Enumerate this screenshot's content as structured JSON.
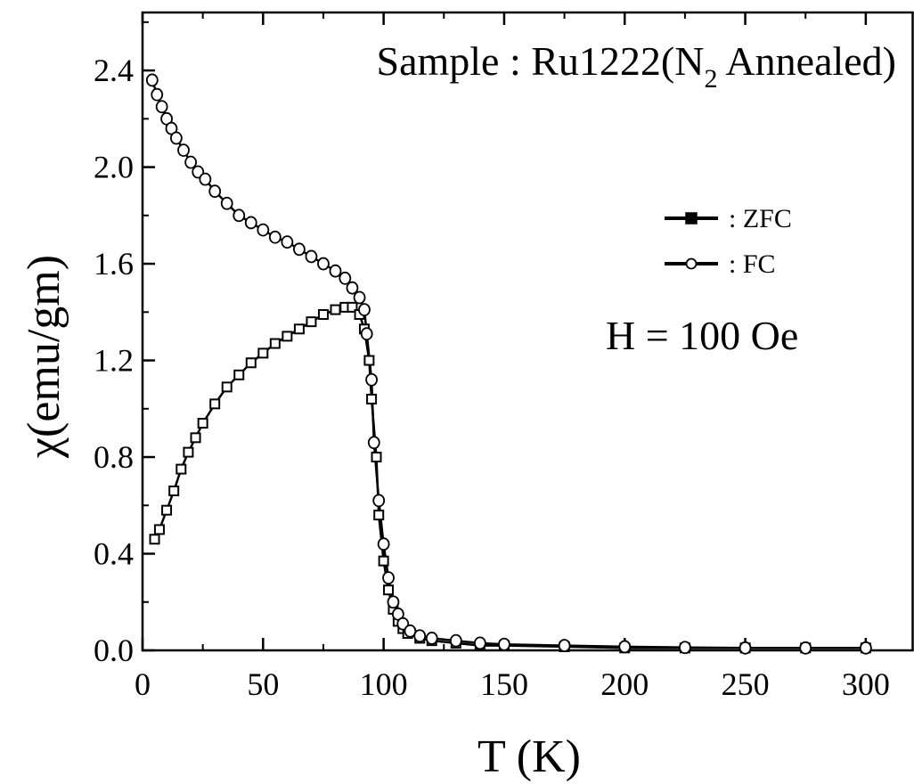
{
  "chart_data": {
    "type": "scatter",
    "title": "",
    "xlabel": "T (K)",
    "ylabel": "χ(emu/gm)",
    "xlim": [
      0,
      320
    ],
    "ylim": [
      0,
      2.64
    ],
    "xticks": [
      0,
      50,
      100,
      150,
      200,
      250,
      300
    ],
    "yticks": [
      0.0,
      0.4,
      0.8,
      1.2,
      1.6,
      2.0,
      2.4
    ],
    "xtick_labels": [
      "0",
      "50",
      "100",
      "150",
      "200",
      "250",
      "300"
    ],
    "ytick_labels": [
      "0.0",
      "0.4",
      "0.8",
      "1.2",
      "1.6",
      "2.0",
      "2.4"
    ],
    "grid": false,
    "legend_position": "right",
    "annotations": {
      "sample_prefix": "Sample : Ru1222(N",
      "sample_subscript": "2",
      "sample_suffix": " Annealed)",
      "field": "H = 100 Oe"
    },
    "series": [
      {
        "name": ": ZFC",
        "marker": "square",
        "color": "#000000",
        "points": [
          [
            5,
            0.46
          ],
          [
            7,
            0.5
          ],
          [
            10,
            0.58
          ],
          [
            13,
            0.66
          ],
          [
            16,
            0.75
          ],
          [
            19,
            0.82
          ],
          [
            22,
            0.88
          ],
          [
            25,
            0.94
          ],
          [
            30,
            1.02
          ],
          [
            35,
            1.09
          ],
          [
            40,
            1.14
          ],
          [
            45,
            1.19
          ],
          [
            50,
            1.23
          ],
          [
            55,
            1.27
          ],
          [
            60,
            1.3
          ],
          [
            65,
            1.33
          ],
          [
            70,
            1.36
          ],
          [
            75,
            1.39
          ],
          [
            80,
            1.41
          ],
          [
            84,
            1.42
          ],
          [
            87,
            1.42
          ],
          [
            90,
            1.39
          ],
          [
            92,
            1.33
          ],
          [
            94,
            1.2
          ],
          [
            95,
            1.04
          ],
          [
            97,
            0.8
          ],
          [
            98,
            0.56
          ],
          [
            100,
            0.37
          ],
          [
            102,
            0.25
          ],
          [
            104,
            0.17
          ],
          [
            106,
            0.12
          ],
          [
            108,
            0.09
          ],
          [
            110,
            0.07
          ],
          [
            115,
            0.05
          ],
          [
            120,
            0.04
          ],
          [
            130,
            0.03
          ],
          [
            140,
            0.02
          ],
          [
            150,
            0.02
          ],
          [
            175,
            0.015
          ],
          [
            200,
            0.01
          ],
          [
            225,
            0.01
          ],
          [
            250,
            0.01
          ],
          [
            275,
            0.01
          ],
          [
            300,
            0.01
          ]
        ]
      },
      {
        "name": ": FC",
        "marker": "circle",
        "color": "#000000",
        "points": [
          [
            4,
            2.36
          ],
          [
            6,
            2.3
          ],
          [
            8,
            2.25
          ],
          [
            10,
            2.2
          ],
          [
            12,
            2.16
          ],
          [
            14,
            2.12
          ],
          [
            17,
            2.07
          ],
          [
            20,
            2.02
          ],
          [
            23,
            1.98
          ],
          [
            26,
            1.95
          ],
          [
            30,
            1.9
          ],
          [
            35,
            1.85
          ],
          [
            40,
            1.8
          ],
          [
            45,
            1.77
          ],
          [
            50,
            1.74
          ],
          [
            55,
            1.71
          ],
          [
            60,
            1.69
          ],
          [
            65,
            1.66
          ],
          [
            70,
            1.63
          ],
          [
            75,
            1.6
          ],
          [
            80,
            1.57
          ],
          [
            84,
            1.54
          ],
          [
            87,
            1.5
          ],
          [
            90,
            1.46
          ],
          [
            92,
            1.41
          ],
          [
            93,
            1.31
          ],
          [
            95,
            1.12
          ],
          [
            96,
            0.86
          ],
          [
            98,
            0.62
          ],
          [
            100,
            0.44
          ],
          [
            102,
            0.3
          ],
          [
            104,
            0.2
          ],
          [
            106,
            0.15
          ],
          [
            108,
            0.11
          ],
          [
            111,
            0.08
          ],
          [
            115,
            0.06
          ],
          [
            120,
            0.05
          ],
          [
            130,
            0.04
          ],
          [
            140,
            0.03
          ],
          [
            150,
            0.025
          ],
          [
            175,
            0.02
          ],
          [
            200,
            0.015
          ],
          [
            225,
            0.012
          ],
          [
            250,
            0.01
          ],
          [
            275,
            0.01
          ],
          [
            300,
            0.01
          ]
        ]
      }
    ]
  }
}
